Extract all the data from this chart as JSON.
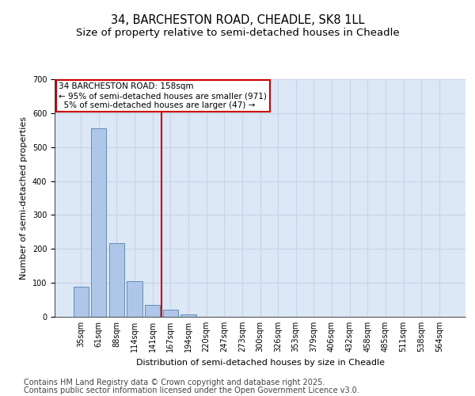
{
  "title_line1": "34, BARCHESTON ROAD, CHEADLE, SK8 1LL",
  "title_line2": "Size of property relative to semi-detached houses in Cheadle",
  "xlabel": "Distribution of semi-detached houses by size in Cheadle",
  "ylabel": "Number of semi-detached properties",
  "bin_labels": [
    "35sqm",
    "61sqm",
    "88sqm",
    "114sqm",
    "141sqm",
    "167sqm",
    "194sqm",
    "220sqm",
    "247sqm",
    "273sqm",
    "300sqm",
    "326sqm",
    "353sqm",
    "379sqm",
    "406sqm",
    "432sqm",
    "458sqm",
    "485sqm",
    "511sqm",
    "538sqm",
    "564sqm"
  ],
  "bar_values": [
    88,
    556,
    218,
    105,
    35,
    20,
    8,
    0,
    0,
    0,
    0,
    0,
    0,
    0,
    0,
    0,
    0,
    0,
    0,
    0,
    0
  ],
  "bar_color": "#aec6e8",
  "bar_edge_color": "#5580b0",
  "grid_color": "#c8d4e8",
  "bg_color": "#dce8f5",
  "vline_x_idx": 4,
  "vline_color": "#cc0000",
  "annotation_line1": "34 BARCHESTON ROAD: 158sqm",
  "annotation_line2": "← 95% of semi-detached houses are smaller (971)",
  "annotation_line3": "  5% of semi-detached houses are larger (47) →",
  "annotation_box_color": "#cc0000",
  "annotation_bg": "#ffffff",
  "ylim": [
    0,
    700
  ],
  "yticks": [
    0,
    100,
    200,
    300,
    400,
    500,
    600,
    700
  ],
  "footer_line1": "Contains HM Land Registry data © Crown copyright and database right 2025.",
  "footer_line2": "Contains public sector information licensed under the Open Government Licence v3.0.",
  "title_fontsize": 10.5,
  "subtitle_fontsize": 9.5,
  "axis_label_fontsize": 8,
  "tick_fontsize": 7,
  "annotation_fontsize": 7.5,
  "footer_fontsize": 7
}
